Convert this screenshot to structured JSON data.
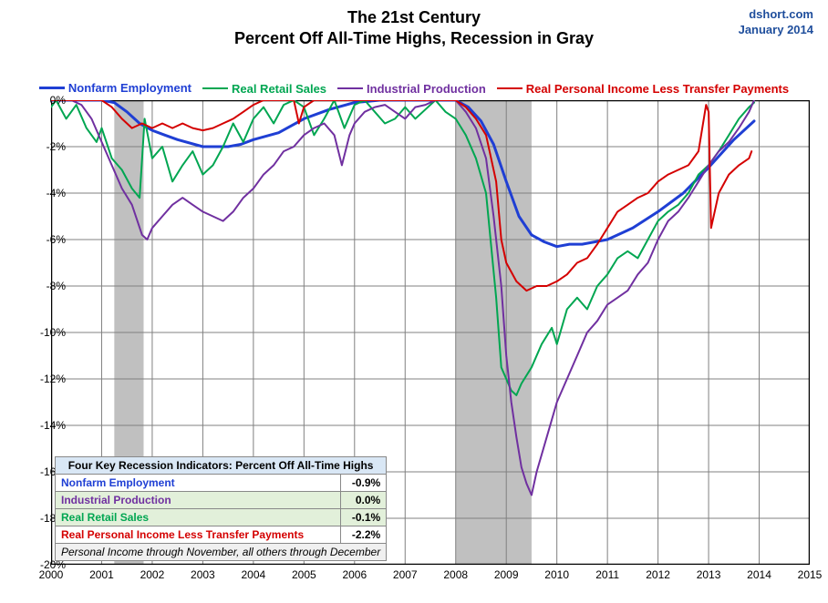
{
  "attribution": {
    "site": "dshort.com",
    "date": "January 2014"
  },
  "title": {
    "line1": "The 21st Century",
    "line2": "Percent Off All-Time Highs, Recession in Gray"
  },
  "chart": {
    "type": "line",
    "background_color": "#ffffff",
    "grid_color": "#808080",
    "axis_color": "#000000",
    "ylim": [
      -20,
      0
    ],
    "ytick_step": 2,
    "y_format": "percent",
    "xlim": [
      2000,
      2015
    ],
    "xtick_step": 1,
    "recessions": [
      {
        "start": 2001.25,
        "end": 2001.83,
        "color": "#c0c0c0"
      },
      {
        "start": 2008.0,
        "end": 2009.5,
        "color": "#c0c0c0"
      }
    ],
    "series": [
      {
        "name": "Nonfarm Employment",
        "color": "#1f3fd4",
        "width": 3,
        "points": [
          [
            2000.0,
            0.0
          ],
          [
            2000.5,
            0.0
          ],
          [
            2001.0,
            0.0
          ],
          [
            2001.25,
            -0.1
          ],
          [
            2001.5,
            -0.5
          ],
          [
            2001.75,
            -1.0
          ],
          [
            2002.0,
            -1.3
          ],
          [
            2002.25,
            -1.5
          ],
          [
            2002.5,
            -1.7
          ],
          [
            2003.0,
            -2.0
          ],
          [
            2003.5,
            -2.0
          ],
          [
            2003.75,
            -1.9
          ],
          [
            2004.0,
            -1.7
          ],
          [
            2004.5,
            -1.4
          ],
          [
            2005.0,
            -0.8
          ],
          [
            2005.5,
            -0.4
          ],
          [
            2006.0,
            -0.1
          ],
          [
            2006.5,
            0.0
          ],
          [
            2007.0,
            0.0
          ],
          [
            2007.5,
            0.0
          ],
          [
            2008.0,
            0.0
          ],
          [
            2008.25,
            -0.3
          ],
          [
            2008.5,
            -0.9
          ],
          [
            2008.75,
            -1.9
          ],
          [
            2009.0,
            -3.5
          ],
          [
            2009.25,
            -5.0
          ],
          [
            2009.5,
            -5.8
          ],
          [
            2009.75,
            -6.1
          ],
          [
            2010.0,
            -6.3
          ],
          [
            2010.25,
            -6.2
          ],
          [
            2010.5,
            -6.2
          ],
          [
            2011.0,
            -6.0
          ],
          [
            2011.5,
            -5.5
          ],
          [
            2012.0,
            -4.8
          ],
          [
            2012.5,
            -4.0
          ],
          [
            2013.0,
            -2.9
          ],
          [
            2013.5,
            -1.7
          ],
          [
            2013.9,
            -0.9
          ]
        ]
      },
      {
        "name": "Real Retail Sales",
        "color": "#00a651",
        "width": 2,
        "points": [
          [
            2000.0,
            -0.3
          ],
          [
            2000.1,
            0.0
          ],
          [
            2000.3,
            -0.8
          ],
          [
            2000.5,
            -0.2
          ],
          [
            2000.7,
            -1.2
          ],
          [
            2000.9,
            -1.8
          ],
          [
            2001.0,
            -1.2
          ],
          [
            2001.2,
            -2.5
          ],
          [
            2001.4,
            -3.0
          ],
          [
            2001.6,
            -3.8
          ],
          [
            2001.75,
            -4.2
          ],
          [
            2001.85,
            -0.8
          ],
          [
            2002.0,
            -2.5
          ],
          [
            2002.2,
            -2.0
          ],
          [
            2002.4,
            -3.5
          ],
          [
            2002.6,
            -2.8
          ],
          [
            2002.8,
            -2.2
          ],
          [
            2003.0,
            -3.2
          ],
          [
            2003.2,
            -2.8
          ],
          [
            2003.4,
            -2.0
          ],
          [
            2003.6,
            -1.0
          ],
          [
            2003.8,
            -1.8
          ],
          [
            2004.0,
            -0.8
          ],
          [
            2004.2,
            -0.3
          ],
          [
            2004.4,
            -1.0
          ],
          [
            2004.6,
            -0.2
          ],
          [
            2004.8,
            0.0
          ],
          [
            2005.0,
            -0.3
          ],
          [
            2005.2,
            -1.5
          ],
          [
            2005.4,
            -0.8
          ],
          [
            2005.6,
            0.0
          ],
          [
            2005.8,
            -1.2
          ],
          [
            2006.0,
            -0.2
          ],
          [
            2006.2,
            0.0
          ],
          [
            2006.4,
            -0.5
          ],
          [
            2006.6,
            -1.0
          ],
          [
            2006.8,
            -0.8
          ],
          [
            2007.0,
            -0.3
          ],
          [
            2007.2,
            -0.8
          ],
          [
            2007.4,
            -0.4
          ],
          [
            2007.6,
            0.0
          ],
          [
            2007.8,
            -0.5
          ],
          [
            2008.0,
            -0.8
          ],
          [
            2008.2,
            -1.5
          ],
          [
            2008.4,
            -2.5
          ],
          [
            2008.6,
            -4.0
          ],
          [
            2008.8,
            -8.5
          ],
          [
            2008.9,
            -11.5
          ],
          [
            2009.0,
            -12.0
          ],
          [
            2009.1,
            -12.5
          ],
          [
            2009.2,
            -12.7
          ],
          [
            2009.3,
            -12.2
          ],
          [
            2009.5,
            -11.5
          ],
          [
            2009.7,
            -10.5
          ],
          [
            2009.9,
            -9.8
          ],
          [
            2010.0,
            -10.5
          ],
          [
            2010.2,
            -9.0
          ],
          [
            2010.4,
            -8.5
          ],
          [
            2010.6,
            -9.0
          ],
          [
            2010.8,
            -8.0
          ],
          [
            2011.0,
            -7.5
          ],
          [
            2011.2,
            -6.8
          ],
          [
            2011.4,
            -6.5
          ],
          [
            2011.6,
            -6.8
          ],
          [
            2011.8,
            -6.0
          ],
          [
            2012.0,
            -5.2
          ],
          [
            2012.2,
            -4.8
          ],
          [
            2012.4,
            -4.5
          ],
          [
            2012.6,
            -4.0
          ],
          [
            2012.8,
            -3.2
          ],
          [
            2013.0,
            -2.8
          ],
          [
            2013.2,
            -2.2
          ],
          [
            2013.4,
            -1.5
          ],
          [
            2013.6,
            -0.8
          ],
          [
            2013.8,
            -0.3
          ],
          [
            2013.9,
            -0.1
          ]
        ]
      },
      {
        "name": "Industrial Production",
        "color": "#7030a0",
        "width": 2,
        "points": [
          [
            2000.0,
            0.0
          ],
          [
            2000.2,
            0.0
          ],
          [
            2000.4,
            0.0
          ],
          [
            2000.6,
            -0.2
          ],
          [
            2000.8,
            -0.8
          ],
          [
            2001.0,
            -1.8
          ],
          [
            2001.2,
            -2.8
          ],
          [
            2001.4,
            -3.8
          ],
          [
            2001.6,
            -4.5
          ],
          [
            2001.8,
            -5.8
          ],
          [
            2001.9,
            -6.0
          ],
          [
            2002.0,
            -5.5
          ],
          [
            2002.2,
            -5.0
          ],
          [
            2002.4,
            -4.5
          ],
          [
            2002.6,
            -4.2
          ],
          [
            2002.8,
            -4.5
          ],
          [
            2003.0,
            -4.8
          ],
          [
            2003.2,
            -5.0
          ],
          [
            2003.4,
            -5.2
          ],
          [
            2003.6,
            -4.8
          ],
          [
            2003.8,
            -4.2
          ],
          [
            2004.0,
            -3.8
          ],
          [
            2004.2,
            -3.2
          ],
          [
            2004.4,
            -2.8
          ],
          [
            2004.6,
            -2.2
          ],
          [
            2004.8,
            -2.0
          ],
          [
            2005.0,
            -1.5
          ],
          [
            2005.2,
            -1.2
          ],
          [
            2005.4,
            -1.0
          ],
          [
            2005.6,
            -1.5
          ],
          [
            2005.75,
            -2.8
          ],
          [
            2005.9,
            -1.5
          ],
          [
            2006.0,
            -1.0
          ],
          [
            2006.2,
            -0.5
          ],
          [
            2006.4,
            -0.3
          ],
          [
            2006.6,
            -0.2
          ],
          [
            2006.8,
            -0.5
          ],
          [
            2007.0,
            -0.8
          ],
          [
            2007.2,
            -0.3
          ],
          [
            2007.4,
            -0.2
          ],
          [
            2007.6,
            0.0
          ],
          [
            2007.8,
            0.0
          ],
          [
            2008.0,
            0.0
          ],
          [
            2008.2,
            -0.5
          ],
          [
            2008.4,
            -1.2
          ],
          [
            2008.6,
            -2.5
          ],
          [
            2008.75,
            -5.0
          ],
          [
            2008.9,
            -8.0
          ],
          [
            2009.0,
            -11.0
          ],
          [
            2009.1,
            -13.0
          ],
          [
            2009.2,
            -14.5
          ],
          [
            2009.3,
            -15.8
          ],
          [
            2009.4,
            -16.5
          ],
          [
            2009.5,
            -17.0
          ],
          [
            2009.6,
            -16.0
          ],
          [
            2009.8,
            -14.5
          ],
          [
            2010.0,
            -13.0
          ],
          [
            2010.2,
            -12.0
          ],
          [
            2010.4,
            -11.0
          ],
          [
            2010.6,
            -10.0
          ],
          [
            2010.8,
            -9.5
          ],
          [
            2011.0,
            -8.8
          ],
          [
            2011.2,
            -8.5
          ],
          [
            2011.4,
            -8.2
          ],
          [
            2011.6,
            -7.5
          ],
          [
            2011.8,
            -7.0
          ],
          [
            2012.0,
            -6.0
          ],
          [
            2012.2,
            -5.2
          ],
          [
            2012.4,
            -4.8
          ],
          [
            2012.6,
            -4.2
          ],
          [
            2012.8,
            -3.5
          ],
          [
            2013.0,
            -2.8
          ],
          [
            2013.2,
            -2.2
          ],
          [
            2013.4,
            -1.8
          ],
          [
            2013.6,
            -1.2
          ],
          [
            2013.8,
            -0.5
          ],
          [
            2013.9,
            0.0
          ]
        ]
      },
      {
        "name": "Real Personal Income Less Transfer Payments",
        "color": "#d40000",
        "width": 2,
        "points": [
          [
            2000.0,
            0.0
          ],
          [
            2000.5,
            0.0
          ],
          [
            2001.0,
            0.0
          ],
          [
            2001.2,
            -0.3
          ],
          [
            2001.4,
            -0.8
          ],
          [
            2001.6,
            -1.2
          ],
          [
            2001.8,
            -1.0
          ],
          [
            2002.0,
            -1.2
          ],
          [
            2002.2,
            -1.0
          ],
          [
            2002.4,
            -1.2
          ],
          [
            2002.6,
            -1.0
          ],
          [
            2002.8,
            -1.2
          ],
          [
            2003.0,
            -1.3
          ],
          [
            2003.2,
            -1.2
          ],
          [
            2003.4,
            -1.0
          ],
          [
            2003.6,
            -0.8
          ],
          [
            2003.8,
            -0.5
          ],
          [
            2004.0,
            -0.2
          ],
          [
            2004.2,
            0.0
          ],
          [
            2004.4,
            0.0
          ],
          [
            2004.6,
            0.0
          ],
          [
            2004.8,
            0.0
          ],
          [
            2004.9,
            -1.0
          ],
          [
            2005.0,
            -0.3
          ],
          [
            2005.2,
            0.0
          ],
          [
            2005.5,
            0.0
          ],
          [
            2006.0,
            0.0
          ],
          [
            2006.5,
            0.0
          ],
          [
            2007.0,
            0.0
          ],
          [
            2007.5,
            0.0
          ],
          [
            2008.0,
            0.0
          ],
          [
            2008.2,
            -0.3
          ],
          [
            2008.4,
            -0.8
          ],
          [
            2008.6,
            -1.5
          ],
          [
            2008.8,
            -3.5
          ],
          [
            2008.9,
            -6.0
          ],
          [
            2009.0,
            -7.0
          ],
          [
            2009.2,
            -7.8
          ],
          [
            2009.4,
            -8.2
          ],
          [
            2009.6,
            -8.0
          ],
          [
            2009.8,
            -8.0
          ],
          [
            2010.0,
            -7.8
          ],
          [
            2010.2,
            -7.5
          ],
          [
            2010.4,
            -7.0
          ],
          [
            2010.6,
            -6.8
          ],
          [
            2010.8,
            -6.2
          ],
          [
            2011.0,
            -5.5
          ],
          [
            2011.2,
            -4.8
          ],
          [
            2011.4,
            -4.5
          ],
          [
            2011.6,
            -4.2
          ],
          [
            2011.8,
            -4.0
          ],
          [
            2012.0,
            -3.5
          ],
          [
            2012.2,
            -3.2
          ],
          [
            2012.4,
            -3.0
          ],
          [
            2012.6,
            -2.8
          ],
          [
            2012.8,
            -2.2
          ],
          [
            2012.95,
            -0.2
          ],
          [
            2013.0,
            -0.5
          ],
          [
            2013.05,
            -5.5
          ],
          [
            2013.2,
            -4.0
          ],
          [
            2013.4,
            -3.2
          ],
          [
            2013.6,
            -2.8
          ],
          [
            2013.8,
            -2.5
          ],
          [
            2013.85,
            -2.2
          ]
        ]
      }
    ],
    "legend_order": [
      0,
      1,
      2,
      3
    ]
  },
  "info_table": {
    "header": "Four Key Recession Indicators: Percent Off All-Time Highs",
    "rows": [
      {
        "label": "Nonfarm Employment",
        "value": "-0.9%",
        "color": "#1f3fd4",
        "bg": "#ffffff"
      },
      {
        "label": "Industrial Production",
        "value": "0.0%",
        "color": "#7030a0",
        "bg": "#e2f0da"
      },
      {
        "label": "Real Retail Sales",
        "value": "-0.1%",
        "color": "#00a651",
        "bg": "#e2f0da"
      },
      {
        "label": "Real Personal Income Less Transfer Payments",
        "value": "-2.2%",
        "color": "#d40000",
        "bg": "#ffffff"
      }
    ],
    "note": "Personal Income through November, all others through December"
  }
}
